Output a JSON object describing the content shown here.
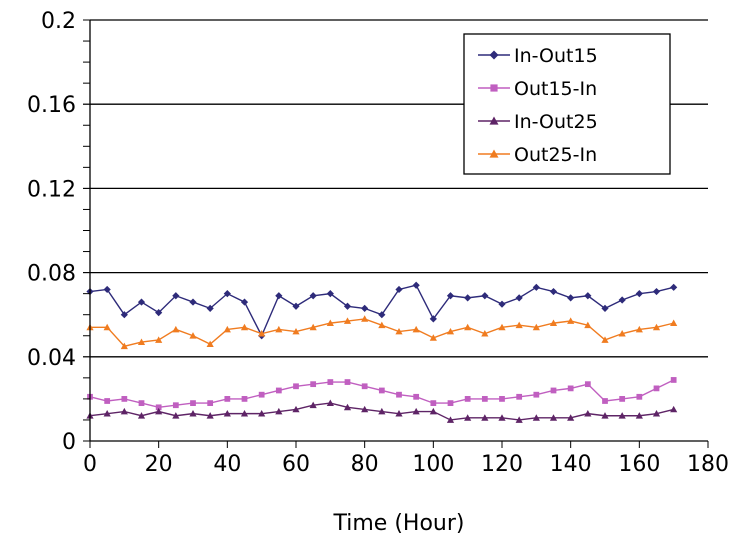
{
  "chart_data": {
    "type": "line",
    "title": "",
    "xlabel": "Time (Hour)",
    "ylabel": "",
    "xlim": [
      0,
      180
    ],
    "ylim": [
      0,
      0.2
    ],
    "x_ticks": [
      0,
      20,
      40,
      60,
      80,
      100,
      120,
      140,
      160,
      180
    ],
    "y_ticks": [
      0,
      0.04,
      0.08,
      0.12,
      0.16,
      0.2
    ],
    "x_tick_labels": [
      "0",
      "20",
      "40",
      "60",
      "80",
      "100",
      "120",
      "140",
      "160",
      "180"
    ],
    "y_tick_labels": [
      "0",
      "0.04",
      "0.08",
      "0.12",
      "0.16",
      "0.2"
    ],
    "grid": "horizontal",
    "legend_position": "top-right",
    "x": [
      0,
      5,
      10,
      15,
      20,
      25,
      30,
      35,
      40,
      45,
      50,
      55,
      60,
      65,
      70,
      75,
      80,
      85,
      90,
      95,
      100,
      105,
      110,
      115,
      120,
      125,
      130,
      135,
      140,
      145,
      150,
      155,
      160,
      165,
      170
    ],
    "series": [
      {
        "name": "In-Out15",
        "color": "#2e2b7a",
        "marker": "diamond",
        "values": [
          0.071,
          0.072,
          0.06,
          0.066,
          0.061,
          0.069,
          0.066,
          0.063,
          0.07,
          0.066,
          0.05,
          0.069,
          0.064,
          0.069,
          0.07,
          0.064,
          0.063,
          0.06,
          0.072,
          0.074,
          0.058,
          0.069,
          0.068,
          0.069,
          0.065,
          0.068,
          0.073,
          0.071,
          0.068,
          0.069,
          0.063,
          0.067,
          0.07,
          0.071,
          0.073
        ]
      },
      {
        "name": "Out15-In",
        "color": "#c05fc0",
        "marker": "square",
        "values": [
          0.021,
          0.019,
          0.02,
          0.018,
          0.016,
          0.017,
          0.018,
          0.018,
          0.02,
          0.02,
          0.022,
          0.024,
          0.026,
          0.027,
          0.028,
          0.028,
          0.026,
          0.024,
          0.022,
          0.021,
          0.018,
          0.018,
          0.02,
          0.02,
          0.02,
          0.021,
          0.022,
          0.024,
          0.025,
          0.027,
          0.019,
          0.02,
          0.021,
          0.025,
          0.029
        ]
      },
      {
        "name": "In-Out25",
        "color": "#5e2466",
        "marker": "triangle",
        "values": [
          0.012,
          0.013,
          0.014,
          0.012,
          0.014,
          0.012,
          0.013,
          0.012,
          0.013,
          0.013,
          0.013,
          0.014,
          0.015,
          0.017,
          0.018,
          0.016,
          0.015,
          0.014,
          0.013,
          0.014,
          0.014,
          0.01,
          0.011,
          0.011,
          0.011,
          0.01,
          0.011,
          0.011,
          0.011,
          0.013,
          0.012,
          0.012,
          0.012,
          0.013,
          0.015
        ]
      },
      {
        "name": "Out25-In",
        "color": "#f07c20",
        "marker": "triangle",
        "values": [
          0.054,
          0.054,
          0.045,
          0.047,
          0.048,
          0.053,
          0.05,
          0.046,
          0.053,
          0.054,
          0.051,
          0.053,
          0.052,
          0.054,
          0.056,
          0.057,
          0.058,
          0.055,
          0.052,
          0.053,
          0.049,
          0.052,
          0.054,
          0.051,
          0.054,
          0.055,
          0.054,
          0.056,
          0.057,
          0.055,
          0.048,
          0.051,
          0.053,
          0.054,
          0.056
        ]
      }
    ]
  }
}
